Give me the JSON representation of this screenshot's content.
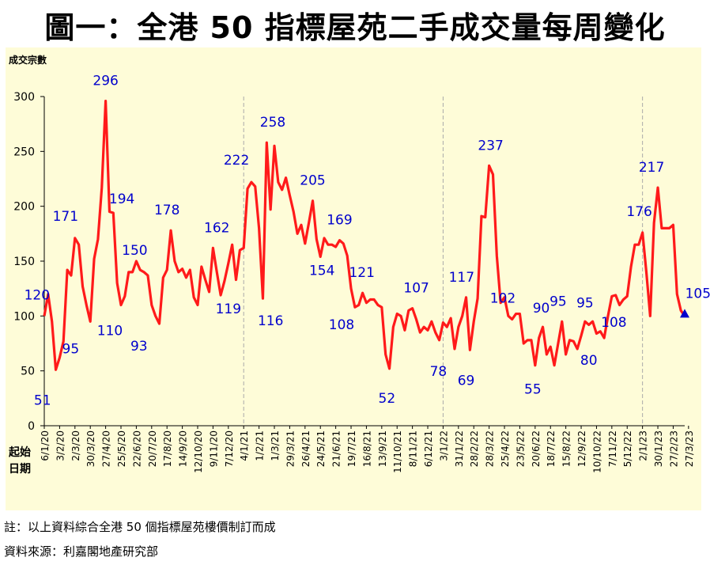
{
  "title": "圖一：全港 50 指標屋苑二手成交量每周變化",
  "notes": {
    "note1": "註：以上資料綜合全港 50 個指標屋苑樓價制訂而成",
    "note2": "資料來源：利嘉閣地產研究部"
  },
  "colors": {
    "background": "#fefcd8",
    "line": "#ff1a1a",
    "label": "#0000cc",
    "grid": "#aaaaaa",
    "marker": "#0000cc"
  },
  "chart_data": {
    "type": "line",
    "ylabel": "成交宗數",
    "xlabel": "起始日期",
    "xlabel_lines": [
      "起始",
      "日期"
    ],
    "ylim": [
      0,
      300
    ],
    "yticks": [
      "0",
      "50",
      "100",
      "150",
      "200",
      "250",
      "300"
    ],
    "year_dividers": [
      "4/1/21",
      "3/1/22",
      "2/1/23"
    ],
    "end_marker": "triangle",
    "x_tick_labels": [
      "6/1/20",
      "3/2/20",
      "2/3/20",
      "30/3/20",
      "27/4/20",
      "25/5/20",
      "22/6/20",
      "20/7/20",
      "17/8/20",
      "14/9/20",
      "12/10/20",
      "9/11/20",
      "7/12/20",
      "4/1/21",
      "1/2/21",
      "1/3/21",
      "29/3/21",
      "26/4/21",
      "24/5/21",
      "21/6/21",
      "19/7/21",
      "16/8/21",
      "13/9/21",
      "11/10/21",
      "8/11/21",
      "6/12/21",
      "3/1/22",
      "31/1/22",
      "28/2/22",
      "28/3/22",
      "25/4/22",
      "23/5/22",
      "20/6/22",
      "18/7/22",
      "15/8/22",
      "12/9/22",
      "10/10/22",
      "7/11/22",
      "5/12/22",
      "2/1/23",
      "30/1/23",
      "27/2/23",
      "27/3/23"
    ],
    "series": [
      {
        "values": [
          100,
          120,
          95,
          51,
          62,
          77,
          142,
          137,
          171,
          165,
          127,
          110,
          95,
          152,
          170,
          217,
          296,
          195,
          194,
          130,
          110,
          118,
          140,
          140,
          150,
          142,
          140,
          137,
          110,
          100,
          93,
          135,
          142,
          178,
          150,
          140,
          143,
          135,
          142,
          117,
          110,
          145,
          133,
          122,
          162,
          140,
          119,
          132,
          148,
          165,
          133,
          160,
          162,
          216,
          222,
          218,
          180,
          116,
          258,
          197,
          255,
          222,
          215,
          226,
          210,
          195,
          175,
          183,
          166,
          185,
          205,
          170,
          154,
          171,
          165,
          165,
          163,
          169,
          166,
          155,
          125,
          108,
          110,
          121,
          112,
          115,
          115,
          110,
          108,
          65,
          52,
          90,
          102,
          100,
          87,
          105,
          107,
          97,
          85,
          90,
          87,
          95,
          85,
          78,
          94,
          90,
          98,
          70,
          90,
          100,
          117,
          69,
          95,
          116,
          191,
          190,
          237,
          229,
          155,
          112,
          117,
          100,
          97,
          102,
          102,
          75,
          78,
          78,
          55,
          80,
          90,
          65,
          72,
          55,
          75,
          95,
          65,
          78,
          77,
          70,
          82,
          95,
          92,
          95,
          84,
          86,
          80,
          100,
          118,
          119,
          110,
          115,
          118,
          145,
          165,
          165,
          176,
          140,
          100,
          185,
          217,
          180,
          180,
          180,
          183,
          120,
          105,
          100
        ]
      }
    ],
    "annotations": [
      {
        "x": "13/1/20",
        "y": 120,
        "text": "120"
      },
      {
        "x": "20/1/20",
        "y": 51,
        "text": "51"
      },
      {
        "x": "2/3/20",
        "y": 171,
        "text": "171"
      },
      {
        "x": "23/3/20",
        "y": 95,
        "text": "95"
      },
      {
        "x": "27/4/20",
        "y": 296,
        "text": "296"
      },
      {
        "x": "25/5/20",
        "y": 110,
        "text": "110"
      },
      {
        "x": "18/5/20",
        "y": 194,
        "text": "194"
      },
      {
        "x": "22/6/20",
        "y": 150,
        "text": "150"
      },
      {
        "x": "20/7/20",
        "y": 93,
        "text": "93"
      },
      {
        "x": "17/8/20",
        "y": 178,
        "text": "178"
      },
      {
        "x": "16/11/20",
        "y": 162,
        "text": "162"
      },
      {
        "x": "7/12/20",
        "y": 119,
        "text": "119"
      },
      {
        "x": "11/1/21",
        "y": 222,
        "text": "222"
      },
      {
        "x": "22/2/21",
        "y": 116,
        "text": "116"
      },
      {
        "x": "1/3/21",
        "y": 258,
        "text": "258"
      },
      {
        "x": "10/5/21",
        "y": 205,
        "text": "205"
      },
      {
        "x": "24/5/21",
        "y": 154,
        "text": "154"
      },
      {
        "x": "28/6/21",
        "y": 169,
        "text": "169"
      },
      {
        "x": "19/7/21",
        "y": 108,
        "text": "108"
      },
      {
        "x": "2/8/21",
        "y": 121,
        "text": "121"
      },
      {
        "x": "4/10/21",
        "y": 52,
        "text": "52"
      },
      {
        "x": "8/11/21",
        "y": 107,
        "text": "107"
      },
      {
        "x": "3/1/22",
        "y": 78,
        "text": "78"
      },
      {
        "x": "31/1/22",
        "y": 117,
        "text": "117"
      },
      {
        "x": "14/2/22",
        "y": 69,
        "text": "69"
      },
      {
        "x": "28/3/22",
        "y": 237,
        "text": "237"
      },
      {
        "x": "25/4/22",
        "y": 102,
        "text": "102"
      },
      {
        "x": "20/6/22",
        "y": 55,
        "text": "55"
      },
      {
        "x": "4/7/22",
        "y": 90,
        "text": "90"
      },
      {
        "x": "1/8/22",
        "y": 95,
        "text": "95"
      },
      {
        "x": "19/9/22",
        "y": 95,
        "text": "95"
      },
      {
        "x": "26/9/22",
        "y": 80,
        "text": "80"
      },
      {
        "x": "28/11/22",
        "y": 108,
        "text": "108"
      },
      {
        "x": "2/1/23",
        "y": 176,
        "text": "176"
      },
      {
        "x": "30/1/23",
        "y": 217,
        "text": "217"
      },
      {
        "x": "27/3/23",
        "y": 105,
        "text": "105"
      }
    ]
  }
}
